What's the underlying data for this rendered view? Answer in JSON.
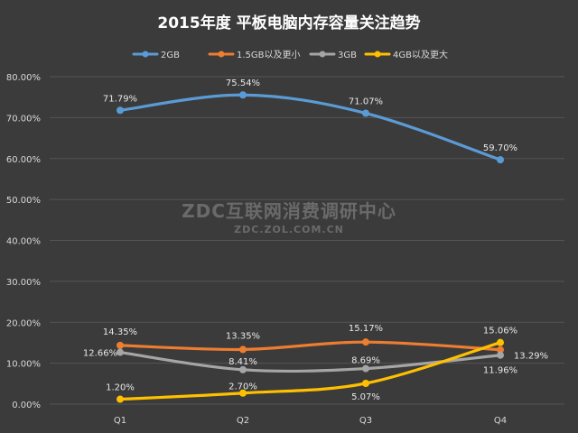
{
  "chart_data": {
    "type": "line",
    "title": "2015年度 平板电脑内存容量关注趋势",
    "categories": [
      "Q1",
      "Q2",
      "Q3",
      "Q4"
    ],
    "y_ticks": [
      "0.00%",
      "10.00%",
      "20.00%",
      "30.00%",
      "40.00%",
      "50.00%",
      "60.00%",
      "70.00%",
      "80.00%"
    ],
    "ylim": [
      0,
      80
    ],
    "grid": true,
    "legend_position": "top",
    "series": [
      {
        "name": "2GB",
        "color": "#5b9bd5",
        "values": [
          71.79,
          75.54,
          71.07,
          59.7
        ],
        "labels": [
          "71.79%",
          "75.54%",
          "71.07%",
          "59.70%"
        ]
      },
      {
        "name": "1.5GB以及更小",
        "color": "#ed7d31",
        "values": [
          14.35,
          13.35,
          15.17,
          13.29
        ],
        "labels": [
          "14.35%",
          "13.35%",
          "15.17%",
          "13.29%"
        ]
      },
      {
        "name": "3GB",
        "color": "#a5a5a5",
        "values": [
          12.66,
          8.41,
          8.69,
          11.96
        ],
        "labels": [
          "12.66%",
          "8.41%",
          "8.69%",
          "11.96%"
        ]
      },
      {
        "name": "4GB以及更大",
        "color": "#ffc000",
        "values": [
          1.2,
          2.7,
          5.07,
          15.06
        ],
        "labels": [
          "1.20%",
          "2.70%",
          "5.07%",
          "15.06%"
        ]
      }
    ]
  },
  "watermark": {
    "line1": "ZDC互联网消费调研中心",
    "line2": "ZDC.ZOL.COM.CN"
  }
}
